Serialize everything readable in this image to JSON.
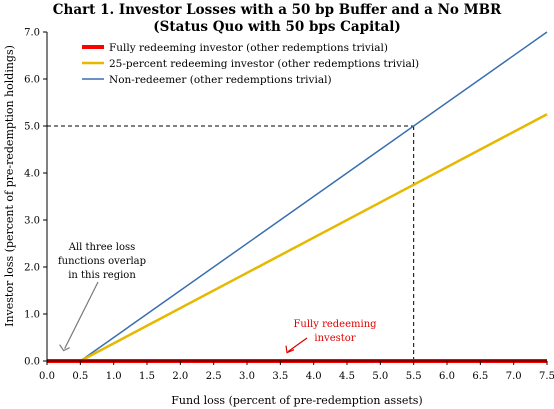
{
  "chart_data": {
    "type": "line",
    "title_line1": "Chart 1. Investor Losses with a 50 bp Buffer and a No MBR",
    "title_line2": "(Status Quo with 50 bps Capital)",
    "xlabel": "Fund loss (percent of pre-redemption assets)",
    "ylabel": "Investor loss (percent of pre-redemption holdings)",
    "xlim": [
      0,
      7.5
    ],
    "ylim": [
      0,
      7.0
    ],
    "x_ticks": [
      "0.0",
      "0.5",
      "1.0",
      "1.5",
      "2.0",
      "2.5",
      "3.0",
      "3.5",
      "4.0",
      "4.5",
      "5.0",
      "5.5",
      "6.0",
      "6.5",
      "7.0",
      "7.5"
    ],
    "y_ticks": [
      "0.0",
      "1.0",
      "2.0",
      "3.0",
      "4.0",
      "5.0",
      "6.0",
      "7.0"
    ],
    "legend_position": "top-left",
    "series": [
      {
        "name": "Fully redeeming investor (other redemptions trivial)",
        "color": "#ff0000",
        "x": [
          0,
          7.5
        ],
        "y": [
          0,
          0
        ]
      },
      {
        "name": "25-percent redeeming investor (other redemptions trivial)",
        "color": "#e6b800",
        "x": [
          0,
          0.5,
          7.5
        ],
        "y": [
          0,
          0,
          5.25
        ]
      },
      {
        "name": "Non-redeemer (other redemptions trivial)",
        "color": "#3a6fb0",
        "x": [
          0,
          0.5,
          7.5
        ],
        "y": [
          0,
          0,
          7.0
        ]
      }
    ],
    "reference_point": {
      "x": 5.5,
      "y": 5.0
    },
    "annotations": [
      {
        "lines": [
          "All three loss",
          "functions overlap",
          "in this region"
        ],
        "points_to": {
          "x": 0.25,
          "y": 0.05
        }
      },
      {
        "lines": [
          "Fully redeeming",
          "investor"
        ],
        "color": "#e00000",
        "points_to": {
          "x": 3.6,
          "y": 0.05
        }
      }
    ]
  }
}
